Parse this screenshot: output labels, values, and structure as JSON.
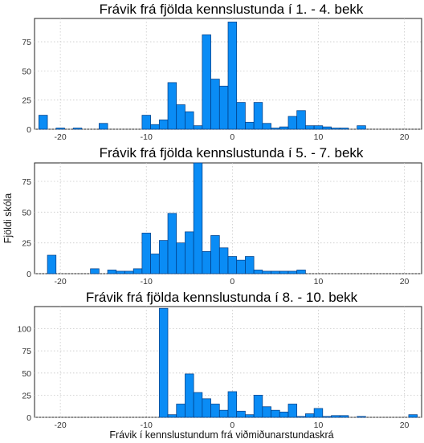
{
  "colors": {
    "bar_fill": "#0a8cf5",
    "bar_edge": "#003a80",
    "grid": "#c8c8c8"
  },
  "chart_data": [
    {
      "type": "bar",
      "title": "Frávik frá fjölda kennslustunda í 1. - 4. bekk",
      "xlabel": "",
      "ylabel": "",
      "xlim": [
        -23,
        22
      ],
      "ylim": [
        0,
        95
      ],
      "xticks": [
        -20,
        -10,
        0,
        10,
        20
      ],
      "yticks": [
        0,
        25,
        50,
        75
      ],
      "grid": true,
      "bin_width": 1,
      "x": [
        -22,
        -20,
        -18,
        -15,
        -10,
        -9,
        -8,
        -7,
        -6,
        -5,
        -4,
        -3,
        -2,
        -1,
        0,
        1,
        2,
        3,
        4,
        5,
        6,
        7,
        8,
        9,
        10,
        11,
        12,
        13,
        15
      ],
      "values": [
        12,
        1,
        1,
        5,
        12,
        4,
        8,
        40,
        21,
        15,
        3,
        81,
        43,
        37,
        92,
        23,
        6,
        23,
        5,
        1,
        2,
        11,
        16,
        3,
        3,
        2,
        1,
        1,
        3
      ]
    },
    {
      "type": "bar",
      "title": "Frávik frá fjölda kennslustunda í 5. - 7. bekk",
      "xlabel": "",
      "ylabel": "Fjöldi skóla",
      "xlim": [
        -23,
        22
      ],
      "ylim": [
        0,
        90
      ],
      "xticks": [
        -20,
        -10,
        0,
        10,
        20
      ],
      "yticks": [
        0,
        25,
        50,
        75
      ],
      "grid": true,
      "bin_width": 1,
      "x": [
        -21,
        -16,
        -14,
        -13,
        -12,
        -11,
        -10,
        -9,
        -8,
        -7,
        -6,
        -5,
        -4,
        -3,
        -2,
        -1,
        0,
        1,
        2,
        3,
        4,
        5,
        6,
        7,
        8
      ],
      "values": [
        15,
        4,
        3,
        2,
        2,
        4,
        33,
        16,
        27,
        49,
        25,
        34,
        90,
        18,
        31,
        21,
        14,
        11,
        14,
        3,
        2,
        2,
        2,
        2,
        3
      ]
    },
    {
      "type": "bar",
      "title": "Frávik frá fjölda kennslustunda í 8. - 10. bekk",
      "xlabel": "Frávik í kennslustundum frá viðmiðunarstundaskrá",
      "ylabel": "",
      "xlim": [
        -23,
        22
      ],
      "ylim": [
        0,
        125
      ],
      "xticks": [
        -20,
        -10,
        0,
        10,
        20
      ],
      "yticks": [
        0,
        25,
        50,
        75,
        100
      ],
      "grid": true,
      "bin_width": 1,
      "x": [
        -8,
        -7,
        -6,
        -5,
        -4,
        -3,
        -2,
        -1,
        0,
        1,
        2,
        3,
        4,
        5,
        6,
        7,
        8,
        9,
        10,
        11,
        12,
        13,
        15,
        21
      ],
      "values": [
        123,
        3,
        15,
        49,
        28,
        21,
        15,
        8,
        29,
        7,
        3,
        25,
        12,
        8,
        6,
        15,
        1,
        4,
        10,
        1,
        2,
        2,
        1,
        3
      ]
    }
  ]
}
